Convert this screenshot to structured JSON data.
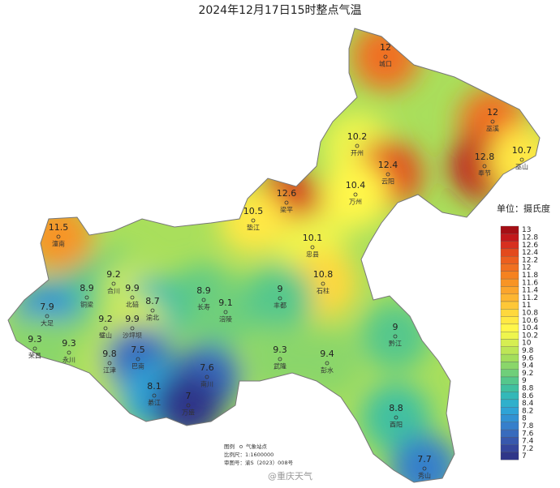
{
  "title": "2024年12月17日15时整点气温",
  "stations": [
    {
      "name": "城口",
      "value": 12
    },
    {
      "name": "巫溪",
      "value": 12
    },
    {
      "name": "开州",
      "value": 10.2
    },
    {
      "name": "奉节",
      "value": 12.8
    },
    {
      "name": "巫山",
      "value": 10.7
    },
    {
      "name": "云阳",
      "value": 12.4
    },
    {
      "name": "万州",
      "value": 10.4
    },
    {
      "name": "梁平",
      "value": 12.6
    },
    {
      "name": "垫江",
      "value": 10.5
    },
    {
      "name": "忠县",
      "value": 10.1
    },
    {
      "name": "潼南",
      "value": 11.5
    },
    {
      "name": "石柱",
      "value": 10.8
    },
    {
      "name": "合川",
      "value": 9.2
    },
    {
      "name": "铜梁",
      "value": 8.9
    },
    {
      "name": "北碚",
      "value": 9.9
    },
    {
      "name": "渝北",
      "value": 8.7
    },
    {
      "name": "长寿",
      "value": 8.9
    },
    {
      "name": "涪陵",
      "value": 9.1
    },
    {
      "name": "丰都",
      "value": 9
    },
    {
      "name": "大足",
      "value": 7.9
    },
    {
      "name": "璧山",
      "value": 9.2
    },
    {
      "name": "沙坪坝",
      "value": 9.9
    },
    {
      "name": "荣昌",
      "value": 9.3
    },
    {
      "name": "永川",
      "value": 9.3
    },
    {
      "name": "江津",
      "value": 9.8
    },
    {
      "name": "巴南",
      "value": 7.5
    },
    {
      "name": "武隆",
      "value": 9.3
    },
    {
      "name": "彭水",
      "value": 9.4
    },
    {
      "name": "黔江",
      "value": 9
    },
    {
      "name": "南川",
      "value": 7.6
    },
    {
      "name": "綦江",
      "value": 8.1
    },
    {
      "name": "万盛",
      "value": 7
    },
    {
      "name": "酉阳",
      "value": 8.8
    },
    {
      "name": "秀山",
      "value": 7.7
    }
  ],
  "legend": {
    "title": "单位：摄氏度",
    "levels": [
      {
        "value": 13,
        "color": "#a50f15"
      },
      {
        "value": 12.8,
        "color": "#c2181b"
      },
      {
        "value": 12.6,
        "color": "#d7301f"
      },
      {
        "value": 12.4,
        "color": "#e34a1c"
      },
      {
        "value": 12.2,
        "color": "#ec5f1e"
      },
      {
        "value": 12,
        "color": "#f07020"
      },
      {
        "value": 11.8,
        "color": "#f5821f"
      },
      {
        "value": 11.6,
        "color": "#f89425"
      },
      {
        "value": 11.4,
        "color": "#fba52c"
      },
      {
        "value": 11.2,
        "color": "#fdb631"
      },
      {
        "value": 11,
        "color": "#fec737"
      },
      {
        "value": 10.8,
        "color": "#ffd83d"
      },
      {
        "value": 10.6,
        "color": "#ffe844"
      },
      {
        "value": 10.4,
        "color": "#fff64a"
      },
      {
        "value": 10.2,
        "color": "#eef54d"
      },
      {
        "value": 10,
        "color": "#d6ee52"
      },
      {
        "value": 9.8,
        "color": "#bde656"
      },
      {
        "value": 9.6,
        "color": "#a3de5c"
      },
      {
        "value": 9.4,
        "color": "#8ad66a"
      },
      {
        "value": 9.2,
        "color": "#6fcf7a"
      },
      {
        "value": 9,
        "color": "#55c78c"
      },
      {
        "value": 8.8,
        "color": "#40c0a0"
      },
      {
        "value": 8.6,
        "color": "#33b8b8"
      },
      {
        "value": 8.4,
        "color": "#2fb0cc"
      },
      {
        "value": 8.2,
        "color": "#2fa3d6"
      },
      {
        "value": 8,
        "color": "#3292d3"
      },
      {
        "value": 7.8,
        "color": "#367fcb"
      },
      {
        "value": 7.6,
        "color": "#386bbd"
      },
      {
        "value": 7.4,
        "color": "#3858ad"
      },
      {
        "value": 7.2,
        "color": "#35469c"
      },
      {
        "value": 7,
        "color": "#2f3689"
      }
    ]
  },
  "footnote": {
    "legend_label": "图例",
    "legend_item": "气象站点",
    "scale": "比例尺：1:1600000",
    "approval": "审图号：渝S（2023）008号"
  },
  "watermark": "@重庆天气"
}
